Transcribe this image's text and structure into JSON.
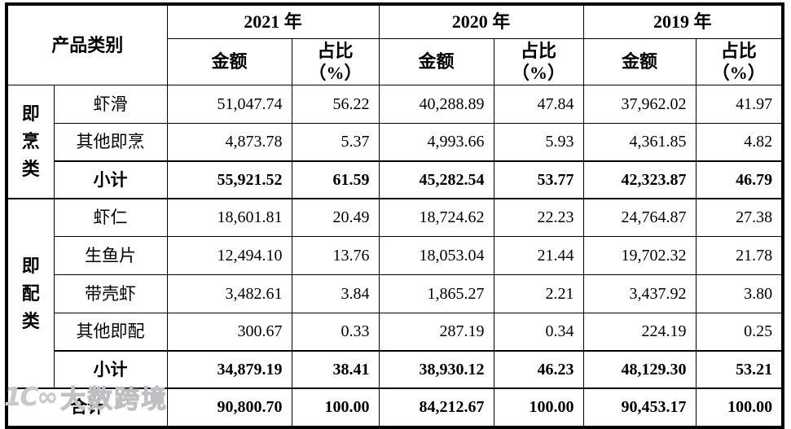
{
  "header": {
    "product_category": "产品类别",
    "years": [
      "2021 年",
      "2020 年",
      "2019 年"
    ],
    "amount_label": "金额",
    "ratio_label": "占比",
    "ratio_unit": "（%）"
  },
  "groups": [
    {
      "name": "即烹类",
      "items": [
        {
          "label": "虾滑",
          "v": [
            "51,047.74",
            "56.22",
            "40,288.89",
            "47.84",
            "37,962.02",
            "41.97"
          ]
        },
        {
          "label": "其他即烹",
          "v": [
            "4,873.78",
            "5.37",
            "4,993.66",
            "5.93",
            "4,361.85",
            "4.82"
          ]
        }
      ],
      "subtotal": {
        "label": "小计",
        "v": [
          "55,921.52",
          "61.59",
          "45,282.54",
          "53.77",
          "42,323.87",
          "46.79"
        ]
      }
    },
    {
      "name": "即配类",
      "items": [
        {
          "label": "虾仁",
          "v": [
            "18,601.81",
            "20.49",
            "18,724.62",
            "22.23",
            "24,764.87",
            "27.38"
          ]
        },
        {
          "label": "生鱼片",
          "v": [
            "12,494.10",
            "13.76",
            "18,053.04",
            "21.44",
            "19,702.32",
            "21.78"
          ]
        },
        {
          "label": "带壳虾",
          "v": [
            "3,482.61",
            "3.84",
            "1,865.27",
            "2.21",
            "3,437.92",
            "3.80"
          ]
        },
        {
          "label": "其他即配",
          "v": [
            "300.67",
            "0.33",
            "287.19",
            "0.34",
            "224.19",
            "0.25"
          ]
        }
      ],
      "subtotal": {
        "label": "小计",
        "v": [
          "34,879.19",
          "38.41",
          "38,930.12",
          "46.23",
          "48,129.30",
          "53.21"
        ]
      }
    }
  ],
  "total": {
    "label": "合计",
    "v": [
      "90,800.70",
      "100.00",
      "84,212.67",
      "100.00",
      "90,453.17",
      "100.00"
    ]
  },
  "watermark": {
    "logo": "1C∞",
    "text": "大数跨境"
  }
}
